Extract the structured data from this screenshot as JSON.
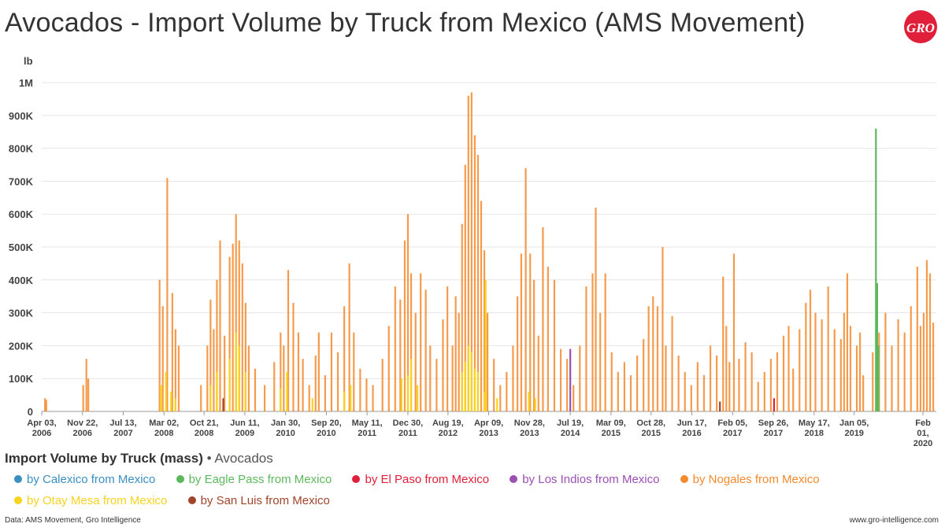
{
  "header": {
    "title": "Avocados - Import Volume by Truck from Mexico (AMS Movement)"
  },
  "logo": {
    "text": "GRO"
  },
  "chart_data": {
    "type": "bar",
    "title": "Avocados - Import Volume by Truck from Mexico (AMS Movement)",
    "ylabel": "lb",
    "ylim": [
      0,
      1000000
    ],
    "y_ticks": [
      {
        "value": 0,
        "label": "0"
      },
      {
        "value": 100000,
        "label": "100K"
      },
      {
        "value": 200000,
        "label": "200K"
      },
      {
        "value": 300000,
        "label": "300K"
      },
      {
        "value": 400000,
        "label": "400K"
      },
      {
        "value": 500000,
        "label": "500K"
      },
      {
        "value": 600000,
        "label": "600K"
      },
      {
        "value": 700000,
        "label": "700K"
      },
      {
        "value": 800000,
        "label": "800K"
      },
      {
        "value": 900000,
        "label": "900K"
      },
      {
        "value": 1000000,
        "label": "1M"
      }
    ],
    "xlim": [
      2006.25,
      2020.3
    ],
    "x_ticks": [
      {
        "value": 2006.25,
        "lines": [
          "Apr 03,",
          "2006"
        ]
      },
      {
        "value": 2006.89,
        "lines": [
          "Nov 22,",
          "2006"
        ]
      },
      {
        "value": 2007.53,
        "lines": [
          "Jul 13,",
          "2007"
        ]
      },
      {
        "value": 2008.17,
        "lines": [
          "Mar 02,",
          "2008"
        ]
      },
      {
        "value": 2008.8,
        "lines": [
          "Oct 21,",
          "2008"
        ]
      },
      {
        "value": 2009.44,
        "lines": [
          "Jun 11,",
          "2009"
        ]
      },
      {
        "value": 2010.08,
        "lines": [
          "Jan 30,",
          "2010"
        ]
      },
      {
        "value": 2010.72,
        "lines": [
          "Sep 20,",
          "2010"
        ]
      },
      {
        "value": 2011.36,
        "lines": [
          "May 11,",
          "2011"
        ]
      },
      {
        "value": 2012.0,
        "lines": [
          "Dec 30,",
          "2011"
        ]
      },
      {
        "value": 2012.63,
        "lines": [
          "Aug 19,",
          "2012"
        ]
      },
      {
        "value": 2013.27,
        "lines": [
          "Apr 09,",
          "2013"
        ]
      },
      {
        "value": 2013.91,
        "lines": [
          "Nov 28,",
          "2013"
        ]
      },
      {
        "value": 2014.55,
        "lines": [
          "Jul 19,",
          "2014"
        ]
      },
      {
        "value": 2015.19,
        "lines": [
          "Mar 09,",
          "2015"
        ]
      },
      {
        "value": 2015.82,
        "lines": [
          "Oct 28,",
          "2015"
        ]
      },
      {
        "value": 2016.46,
        "lines": [
          "Jun 17,",
          "2016"
        ]
      },
      {
        "value": 2017.1,
        "lines": [
          "Feb 05,",
          "2017"
        ]
      },
      {
        "value": 2017.74,
        "lines": [
          "Sep 26,",
          "2017"
        ]
      },
      {
        "value": 2018.38,
        "lines": [
          "May 17,",
          "2018"
        ]
      },
      {
        "value": 2019.01,
        "lines": [
          "Jan 05,",
          "2019"
        ]
      },
      {
        "value": 2020.09,
        "lines": [
          "Feb",
          "01,",
          "2020"
        ]
      }
    ],
    "grid": true,
    "series": [
      {
        "name": "by Nogales from Mexico",
        "color": "#f58a2d",
        "points": [
          [
            2006.3,
            40000
          ],
          [
            2006.32,
            35000
          ],
          [
            2006.9,
            80000
          ],
          [
            2006.95,
            160000
          ],
          [
            2006.98,
            100000
          ],
          [
            2008.1,
            400000
          ],
          [
            2008.15,
            320000
          ],
          [
            2008.22,
            710000
          ],
          [
            2008.3,
            360000
          ],
          [
            2008.35,
            250000
          ],
          [
            2008.4,
            200000
          ],
          [
            2008.75,
            80000
          ],
          [
            2008.85,
            200000
          ],
          [
            2008.9,
            340000
          ],
          [
            2008.95,
            250000
          ],
          [
            2009.0,
            400000
          ],
          [
            2009.05,
            520000
          ],
          [
            2009.12,
            230000
          ],
          [
            2009.2,
            470000
          ],
          [
            2009.25,
            510000
          ],
          [
            2009.3,
            600000
          ],
          [
            2009.35,
            520000
          ],
          [
            2009.4,
            450000
          ],
          [
            2009.45,
            330000
          ],
          [
            2009.5,
            200000
          ],
          [
            2009.6,
            130000
          ],
          [
            2009.75,
            80000
          ],
          [
            2009.9,
            150000
          ],
          [
            2010.0,
            240000
          ],
          [
            2010.05,
            200000
          ],
          [
            2010.12,
            430000
          ],
          [
            2010.2,
            330000
          ],
          [
            2010.28,
            240000
          ],
          [
            2010.35,
            160000
          ],
          [
            2010.45,
            80000
          ],
          [
            2010.55,
            170000
          ],
          [
            2010.6,
            240000
          ],
          [
            2010.7,
            110000
          ],
          [
            2010.8,
            240000
          ],
          [
            2010.9,
            180000
          ],
          [
            2011.0,
            320000
          ],
          [
            2011.08,
            450000
          ],
          [
            2011.15,
            240000
          ],
          [
            2011.25,
            130000
          ],
          [
            2011.35,
            100000
          ],
          [
            2011.45,
            80000
          ],
          [
            2011.6,
            160000
          ],
          [
            2011.7,
            260000
          ],
          [
            2011.8,
            380000
          ],
          [
            2011.88,
            340000
          ],
          [
            2011.95,
            520000
          ],
          [
            2012.0,
            600000
          ],
          [
            2012.05,
            420000
          ],
          [
            2012.12,
            300000
          ],
          [
            2012.2,
            420000
          ],
          [
            2012.28,
            370000
          ],
          [
            2012.35,
            200000
          ],
          [
            2012.45,
            160000
          ],
          [
            2012.55,
            280000
          ],
          [
            2012.62,
            380000
          ],
          [
            2012.7,
            200000
          ],
          [
            2012.75,
            350000
          ],
          [
            2012.8,
            300000
          ],
          [
            2012.85,
            570000
          ],
          [
            2012.9,
            750000
          ],
          [
            2012.95,
            960000
          ],
          [
            2013.0,
            970000
          ],
          [
            2013.05,
            840000
          ],
          [
            2013.1,
            780000
          ],
          [
            2013.15,
            640000
          ],
          [
            2013.2,
            490000
          ],
          [
            2013.25,
            300000
          ],
          [
            2013.35,
            160000
          ],
          [
            2013.45,
            80000
          ],
          [
            2013.55,
            120000
          ],
          [
            2013.65,
            200000
          ],
          [
            2013.72,
            350000
          ],
          [
            2013.78,
            480000
          ],
          [
            2013.85,
            740000
          ],
          [
            2013.92,
            480000
          ],
          [
            2013.98,
            400000
          ],
          [
            2014.05,
            230000
          ],
          [
            2014.12,
            560000
          ],
          [
            2014.2,
            440000
          ],
          [
            2014.3,
            400000
          ],
          [
            2014.4,
            190000
          ],
          [
            2014.5,
            160000
          ],
          [
            2014.6,
            80000
          ],
          [
            2014.7,
            200000
          ],
          [
            2014.8,
            380000
          ],
          [
            2014.9,
            420000
          ],
          [
            2014.95,
            620000
          ],
          [
            2015.02,
            300000
          ],
          [
            2015.1,
            420000
          ],
          [
            2015.2,
            180000
          ],
          [
            2015.3,
            120000
          ],
          [
            2015.4,
            150000
          ],
          [
            2015.5,
            110000
          ],
          [
            2015.6,
            170000
          ],
          [
            2015.7,
            220000
          ],
          [
            2015.78,
            320000
          ],
          [
            2015.85,
            350000
          ],
          [
            2015.92,
            320000
          ],
          [
            2016.0,
            500000
          ],
          [
            2016.05,
            200000
          ],
          [
            2016.15,
            290000
          ],
          [
            2016.25,
            170000
          ],
          [
            2016.35,
            120000
          ],
          [
            2016.45,
            80000
          ],
          [
            2016.55,
            150000
          ],
          [
            2016.65,
            110000
          ],
          [
            2016.75,
            200000
          ],
          [
            2016.85,
            170000
          ],
          [
            2016.95,
            410000
          ],
          [
            2017.0,
            260000
          ],
          [
            2017.05,
            150000
          ],
          [
            2017.12,
            480000
          ],
          [
            2017.2,
            160000
          ],
          [
            2017.3,
            210000
          ],
          [
            2017.4,
            180000
          ],
          [
            2017.5,
            90000
          ],
          [
            2017.6,
            120000
          ],
          [
            2017.7,
            160000
          ],
          [
            2017.8,
            180000
          ],
          [
            2017.9,
            230000
          ],
          [
            2017.98,
            260000
          ],
          [
            2018.05,
            130000
          ],
          [
            2018.15,
            250000
          ],
          [
            2018.25,
            330000
          ],
          [
            2018.32,
            370000
          ],
          [
            2018.4,
            300000
          ],
          [
            2018.5,
            280000
          ],
          [
            2018.6,
            380000
          ],
          [
            2018.7,
            250000
          ],
          [
            2018.8,
            220000
          ],
          [
            2018.85,
            300000
          ],
          [
            2018.9,
            420000
          ],
          [
            2018.95,
            260000
          ],
          [
            2019.05,
            200000
          ],
          [
            2019.1,
            240000
          ],
          [
            2019.15,
            110000
          ],
          [
            2019.3,
            180000
          ],
          [
            2019.4,
            240000
          ],
          [
            2019.5,
            300000
          ],
          [
            2019.6,
            200000
          ],
          [
            2019.7,
            280000
          ],
          [
            2019.8,
            240000
          ],
          [
            2019.9,
            320000
          ],
          [
            2020.0,
            440000
          ],
          [
            2020.05,
            260000
          ],
          [
            2020.1,
            300000
          ],
          [
            2020.15,
            460000
          ],
          [
            2020.2,
            420000
          ],
          [
            2020.25,
            270000
          ]
        ]
      },
      {
        "name": "by Otay Mesa from Mexico",
        "color": "#f7d31e",
        "points": [
          [
            2008.12,
            80000
          ],
          [
            2008.2,
            120000
          ],
          [
            2008.28,
            60000
          ],
          [
            2008.35,
            40000
          ],
          [
            2008.9,
            80000
          ],
          [
            2009.0,
            120000
          ],
          [
            2009.2,
            160000
          ],
          [
            2009.3,
            240000
          ],
          [
            2009.35,
            200000
          ],
          [
            2009.45,
            120000
          ],
          [
            2010.0,
            70000
          ],
          [
            2010.1,
            120000
          ],
          [
            2010.5,
            40000
          ],
          [
            2011.0,
            60000
          ],
          [
            2011.1,
            80000
          ],
          [
            2011.9,
            100000
          ],
          [
            2012.0,
            110000
          ],
          [
            2012.05,
            160000
          ],
          [
            2012.15,
            80000
          ],
          [
            2012.85,
            120000
          ],
          [
            2012.9,
            150000
          ],
          [
            2012.95,
            200000
          ],
          [
            2013.0,
            180000
          ],
          [
            2013.05,
            130000
          ],
          [
            2013.1,
            120000
          ],
          [
            2013.2,
            60000
          ],
          [
            2013.22,
            400000
          ],
          [
            2013.4,
            40000
          ],
          [
            2013.9,
            60000
          ],
          [
            2014.0,
            40000
          ]
        ]
      },
      {
        "name": "by Eagle Pass from Mexico",
        "color": "#5cb85c",
        "points": [
          [
            2019.35,
            860000
          ],
          [
            2019.37,
            390000
          ],
          [
            2019.39,
            200000
          ]
        ]
      },
      {
        "name": "by Los Indios from Mexico",
        "color": "#9b4fb3",
        "points": [
          [
            2014.55,
            190000
          ]
        ]
      },
      {
        "name": "by El Paso from Mexico",
        "color": "#e0203a",
        "points": [
          [
            2017.75,
            40000
          ]
        ]
      },
      {
        "name": "by San Luis from Mexico",
        "color": "#a0442a",
        "points": [
          [
            2009.1,
            40000
          ],
          [
            2016.9,
            30000
          ]
        ]
      },
      {
        "name": "by Calexico from Mexico",
        "color": "#3a8fc2",
        "points": []
      }
    ]
  },
  "legend": {
    "title": "Import Volume by Truck (mass)",
    "subtitle": "Avocados",
    "row1": [
      {
        "label": "by Calexico from Mexico",
        "color": "#3a8fc2"
      },
      {
        "label": "by Eagle Pass from Mexico",
        "color": "#5cb85c"
      },
      {
        "label": "by El Paso from Mexico",
        "color": "#e0203a"
      },
      {
        "label": "by Los Indios from Mexico",
        "color": "#9b4fb3"
      },
      {
        "label": "by Nogales from Mexico",
        "color": "#f58a2d"
      }
    ],
    "row2": [
      {
        "label": "by Otay Mesa from Mexico",
        "color": "#f7d31e"
      },
      {
        "label": "by San Luis from Mexico",
        "color": "#a0442a"
      }
    ]
  },
  "footer": {
    "source": "Data: AMS Movement, Gro Intelligence",
    "url": "www.gro-intelligence.com"
  }
}
